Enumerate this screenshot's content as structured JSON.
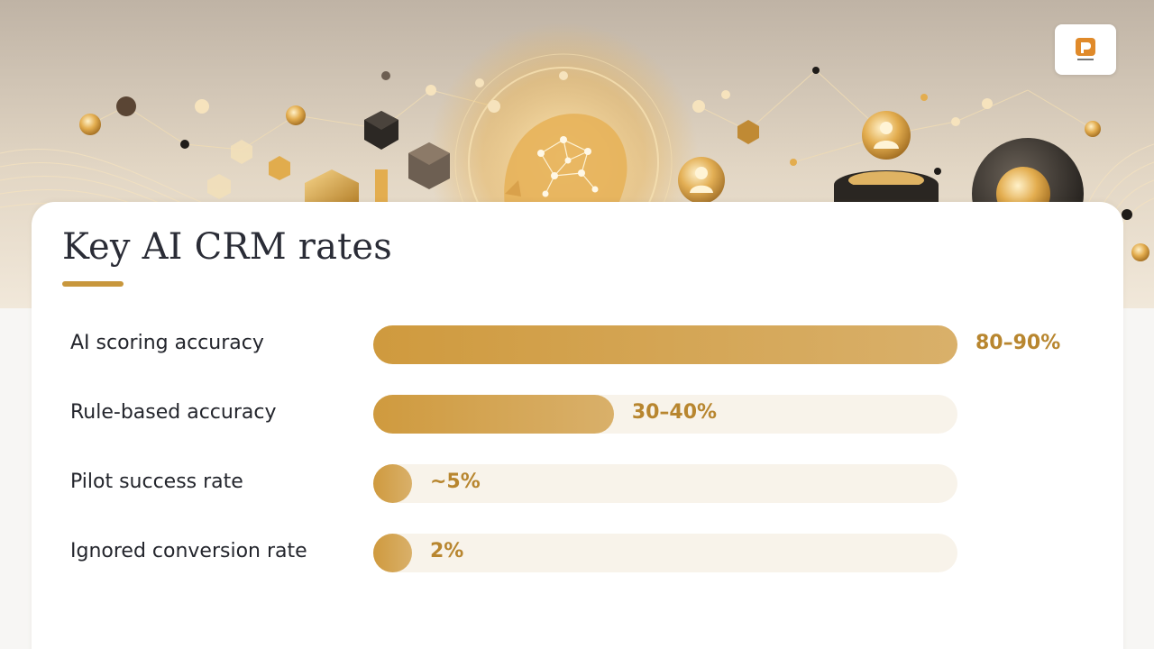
{
  "slide": {
    "title": "Key AI CRM rates"
  },
  "colors": {
    "accent": "#c8973c",
    "bar_fill_start": "#cf9a3e",
    "bar_fill_end": "#d9b06a",
    "track": "#f8f3ea",
    "value_text": "#b8862f",
    "label_text": "#23252c"
  },
  "decoration": {
    "hero_icons": [
      "ai-brain-network-icon",
      "user-avatar-icon",
      "user-avatar-icon",
      "hexagon-cube-icon",
      "network-node-icon"
    ],
    "logo_icon": "brand-logo-icon"
  },
  "chart_data": {
    "type": "bar",
    "orientation": "horizontal",
    "title": "Key AI CRM rates",
    "categories": [
      "AI scoring accuracy",
      "Rule-based accuracy",
      "Pilot success rate",
      "Ignored conversion rate"
    ],
    "values": [
      85,
      35,
      5,
      2
    ],
    "value_labels": [
      "80–90%",
      "30–40%",
      "~5%",
      "2%"
    ],
    "xlim": [
      0,
      85
    ],
    "grid": false,
    "legend": "none"
  }
}
